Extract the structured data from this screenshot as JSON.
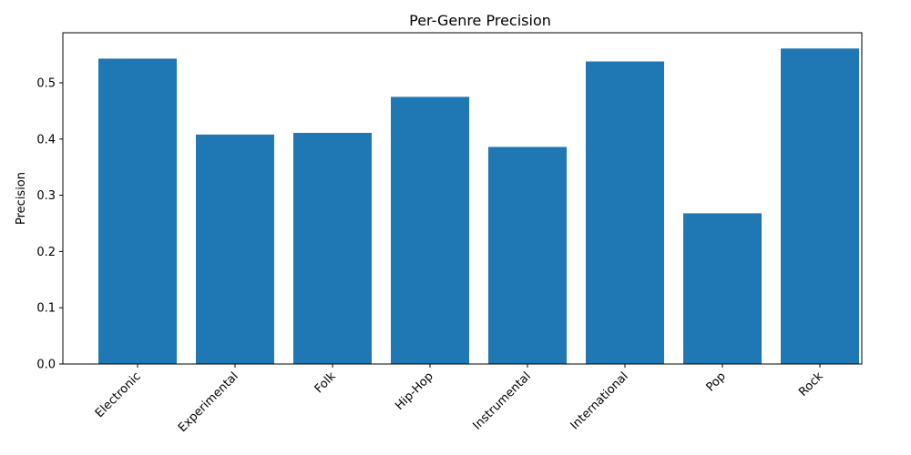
{
  "chart_data": {
    "type": "bar",
    "title": "Per-Genre Precision",
    "xlabel": "",
    "ylabel": "Precision",
    "categories": [
      "Electronic",
      "Experimental",
      "Folk",
      "Hip-Hop",
      "Instrumental",
      "International",
      "Pop",
      "Rock"
    ],
    "values": [
      0.543,
      0.408,
      0.411,
      0.475,
      0.386,
      0.538,
      0.268,
      0.561
    ],
    "ylim": [
      0,
      0.589
    ],
    "yticks": [
      "0.0",
      "0.1",
      "0.2",
      "0.3",
      "0.4",
      "0.5"
    ],
    "bar_color": "#1f77b4",
    "grid": false,
    "legend": "none"
  }
}
